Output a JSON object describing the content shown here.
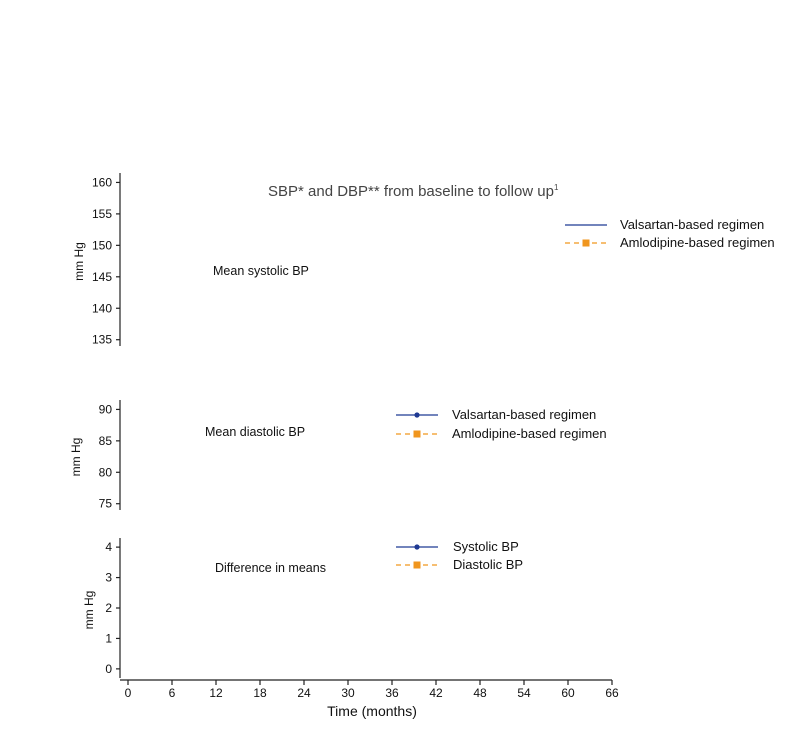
{
  "chart_data": {
    "type": "line",
    "title": "SBP* and DBP** from baseline to follow up",
    "title_superscript": "1",
    "xlabel": "Time (months)",
    "xlim": [
      0,
      66
    ],
    "xticks": [
      0,
      6,
      12,
      18,
      24,
      30,
      36,
      42,
      48,
      54,
      60,
      66
    ],
    "colors": {
      "valsartan": "#1f3a93",
      "amlodipine": "#f0961e",
      "axis": "#222222"
    },
    "panels": [
      {
        "label": "Mean systolic BP",
        "ylabel": "mm Hg",
        "ylim": [
          134,
          161.5
        ],
        "yticks": [
          135,
          140,
          145,
          150,
          155,
          160
        ],
        "legend": [
          {
            "name": "Valsartan-based regimen",
            "style": "solid",
            "marker": "none"
          },
          {
            "name": "Amlodipine-based regimen",
            "style": "dashed",
            "marker": "square"
          }
        ],
        "series": []
      },
      {
        "label": "Mean diastolic BP",
        "ylabel": "mm Hg",
        "ylim": [
          74,
          91.5
        ],
        "yticks": [
          75,
          80,
          85,
          90
        ],
        "legend": [
          {
            "name": "Valsartan-based regimen",
            "style": "solid",
            "marker": "circle"
          },
          {
            "name": "Amlodipine-based regimen",
            "style": "dashed",
            "marker": "square"
          }
        ],
        "series": []
      },
      {
        "label": "Difference in means",
        "ylabel": "mm Hg",
        "ylim": [
          -0.3,
          4.3
        ],
        "yticks": [
          0,
          1,
          2,
          3,
          4
        ],
        "legend": [
          {
            "name": "Systolic BP",
            "style": "solid",
            "marker": "circle"
          },
          {
            "name": "Diastolic BP",
            "style": "dashed",
            "marker": "square"
          }
        ],
        "series": []
      }
    ]
  }
}
